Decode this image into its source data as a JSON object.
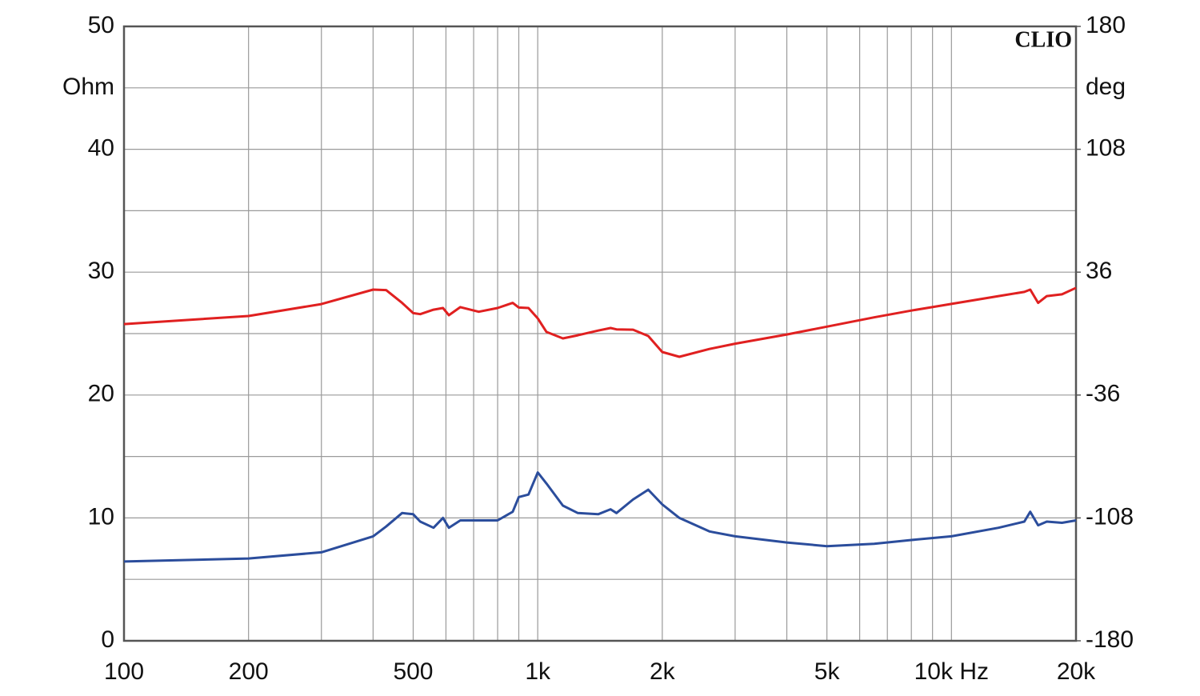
{
  "chart_data": {
    "type": "line",
    "annotation": "CLIO",
    "ylabel": "Ohm",
    "y2label": "deg",
    "xlog": true,
    "grid": true,
    "xlim": [
      100,
      20000
    ],
    "xticks": [
      100,
      200,
      500,
      {
        "value": 1000,
        "label": "1k"
      },
      {
        "value": 2000,
        "label": "2k"
      },
      {
        "value": 5000,
        "label": "5k"
      },
      {
        "value": 10000,
        "label": "10k Hz"
      },
      {
        "value": 20000,
        "label": "20k"
      }
    ],
    "xminor": [
      300,
      400,
      600,
      700,
      800,
      900,
      3000,
      4000,
      6000,
      7000,
      8000,
      9000
    ],
    "ylim": [
      0,
      50
    ],
    "yticks": [
      0,
      10,
      20,
      30,
      40,
      50
    ],
    "yminor": [
      5,
      15,
      25,
      35,
      45
    ],
    "y2lim": [
      -180,
      180
    ],
    "y2ticks": [
      -180,
      -108,
      -36,
      36,
      108,
      180
    ],
    "x": [
      100,
      200,
      300,
      400,
      430,
      470,
      500,
      520,
      560,
      590,
      610,
      650,
      720,
      800,
      870,
      900,
      950,
      1000,
      1050,
      1150,
      1250,
      1400,
      1500,
      1550,
      1700,
      1850,
      2000,
      2200,
      2600,
      3000,
      4000,
      5000,
      6500,
      8000,
      10000,
      13000,
      15000,
      15500,
      16200,
      17000,
      18500,
      20000
    ],
    "series": [
      {
        "color": "#2b4d9c",
        "values": [
          6.45,
          6.7,
          7.2,
          8.5,
          9.3,
          10.4,
          10.3,
          9.7,
          9.2,
          10.0,
          9.2,
          9.8,
          9.8,
          9.8,
          10.5,
          11.7,
          11.9,
          13.7,
          12.8,
          11.0,
          10.4,
          10.3,
          10.7,
          10.4,
          11.5,
          12.3,
          11.1,
          10.0,
          8.9,
          8.5,
          8.0,
          7.7,
          7.9,
          8.2,
          8.5,
          9.2,
          9.7,
          10.5,
          9.4,
          9.7,
          9.6,
          9.8
        ]
      },
      {
        "color": "#e02020",
        "axis": "y2",
        "values": [
          5.6,
          10.3,
          17.3,
          25.8,
          25.5,
          18,
          12,
          11.4,
          14,
          15,
          10.8,
          15.5,
          12.8,
          15,
          18,
          15.3,
          15,
          8.9,
          1,
          -2.8,
          -1,
          1.8,
          3.3,
          2.5,
          2.3,
          -1.4,
          -10.8,
          -13.6,
          -9,
          -5.9,
          -0.5,
          4.1,
          9.5,
          13.5,
          17.4,
          22,
          24.4,
          25.8,
          18,
          22,
          23,
          26.8
        ]
      }
    ]
  }
}
